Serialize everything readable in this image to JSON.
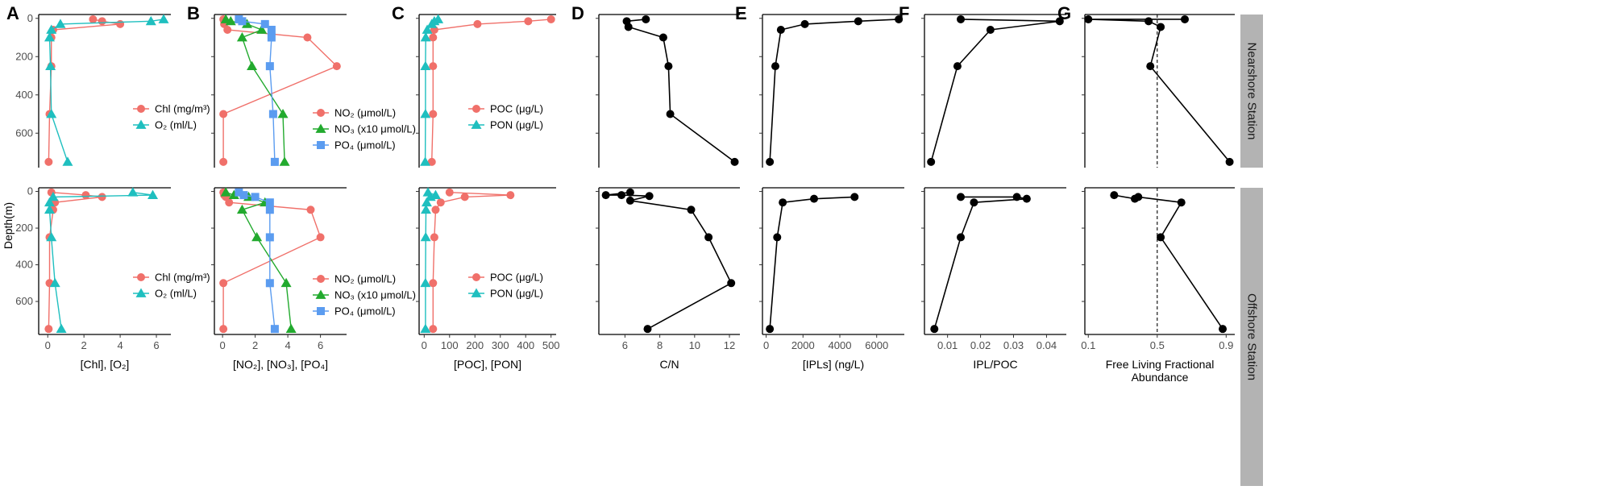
{
  "figure": {
    "y_axis_title": "Depth(m)",
    "strips": [
      "Nearshore Station",
      "Offshore Station"
    ],
    "colors": {
      "red": "#f0706a",
      "teal": "#1fbfbf",
      "green": "#22aa2e",
      "blue": "#5b9cf0",
      "black": "#000000"
    }
  },
  "chart_data": [
    {
      "panel": "A",
      "type": "scatter-line",
      "xlabel": "[Chl], [O₂]",
      "xlim": [
        -0.5,
        6.8
      ],
      "xticks": [
        0,
        2,
        4,
        6
      ],
      "tick_labels": [
        "0",
        "2",
        "4",
        "6"
      ],
      "ylim": [
        780,
        -20
      ],
      "yticks": [
        0,
        200,
        400,
        600
      ],
      "ytick_labels": [
        "0",
        "200",
        "400",
        "600"
      ],
      "legend": [
        {
          "label": "Chl (mg/m³)",
          "color": "#f0706a",
          "marker": "circle"
        },
        {
          "label": "O₂ (ml/L)",
          "color": "#1fbfbf",
          "marker": "triangle"
        }
      ],
      "series": [
        {
          "name": "Nearshore Chl",
          "row": 0,
          "color": "#f0706a",
          "marker": "circle",
          "x": [
            2.5,
            3.0,
            4.0,
            0.3,
            0.2,
            0.2,
            0.1,
            0.05
          ],
          "y": [
            5,
            15,
            30,
            60,
            100,
            250,
            500,
            750
          ]
        },
        {
          "name": "Nearshore O2",
          "row": 0,
          "color": "#1fbfbf",
          "marker": "triangle",
          "x": [
            6.4,
            5.7,
            0.7,
            0.2,
            0.1,
            0.15,
            0.2,
            1.1
          ],
          "y": [
            5,
            15,
            30,
            60,
            100,
            250,
            500,
            750
          ]
        },
        {
          "name": "Offshore Chl",
          "row": 1,
          "color": "#f0706a",
          "marker": "circle",
          "x": [
            0.2,
            2.1,
            3.0,
            0.4,
            0.3,
            0.1,
            0.1,
            0.05
          ],
          "y": [
            5,
            20,
            30,
            60,
            100,
            250,
            500,
            750
          ]
        },
        {
          "name": "Offshore O2",
          "row": 1,
          "color": "#1fbfbf",
          "marker": "triangle",
          "x": [
            4.7,
            5.8,
            0.3,
            0.1,
            0.1,
            0.2,
            0.4,
            0.75
          ],
          "y": [
            5,
            20,
            30,
            60,
            100,
            250,
            500,
            750
          ]
        }
      ]
    },
    {
      "panel": "B",
      "type": "scatter-line",
      "xlabel": "[NO₂], [NO₃], [PO₄]",
      "xlim": [
        -0.5,
        7.6
      ],
      "xticks": [
        0,
        2,
        4,
        6
      ],
      "tick_labels": [
        "0",
        "2",
        "4",
        "6"
      ],
      "ylim": [
        780,
        -20
      ],
      "yticks": [
        0,
        200,
        400,
        600
      ],
      "ytick_labels": [
        "0",
        "200",
        "400",
        "600"
      ],
      "legend": [
        {
          "label": "NO₂ (μmol/L)",
          "color": "#f0706a",
          "marker": "circle"
        },
        {
          "label": "NO₃ (x10 μmol/L)",
          "color": "#22aa2e",
          "marker": "triangle"
        },
        {
          "label": "PO₄ (μmol/L)",
          "color": "#5b9cf0",
          "marker": "square"
        }
      ],
      "series": [
        {
          "name": "Nearshore NO2",
          "row": 0,
          "color": "#f0706a",
          "marker": "circle",
          "x": [
            0.05,
            0.1,
            0.1,
            0.3,
            5.2,
            7.0,
            0.05,
            0.05
          ],
          "y": [
            5,
            15,
            30,
            60,
            100,
            250,
            500,
            750
          ]
        },
        {
          "name": "Nearshore NO3",
          "row": 0,
          "color": "#22aa2e",
          "marker": "triangle",
          "x": [
            0.2,
            0.5,
            1.5,
            2.4,
            1.2,
            1.8,
            3.7,
            3.8
          ],
          "y": [
            5,
            15,
            30,
            60,
            100,
            250,
            500,
            750
          ]
        },
        {
          "name": "Nearshore PO4",
          "row": 0,
          "color": "#5b9cf0",
          "marker": "square",
          "x": [
            1.0,
            1.2,
            2.6,
            3.0,
            3.0,
            2.9,
            3.1,
            3.2
          ],
          "y": [
            5,
            15,
            30,
            60,
            100,
            250,
            500,
            750
          ]
        },
        {
          "name": "Offshore NO2",
          "row": 1,
          "color": "#f0706a",
          "marker": "circle",
          "x": [
            0.05,
            0.1,
            0.2,
            0.4,
            5.4,
            6.0,
            0.05,
            0.05
          ],
          "y": [
            5,
            20,
            30,
            60,
            100,
            250,
            500,
            750
          ]
        },
        {
          "name": "Offshore NO3",
          "row": 1,
          "color": "#22aa2e",
          "marker": "triangle",
          "x": [
            0.2,
            0.7,
            1.6,
            2.6,
            1.2,
            2.1,
            3.9,
            4.2
          ],
          "y": [
            5,
            20,
            30,
            60,
            100,
            250,
            500,
            750
          ]
        },
        {
          "name": "Offshore PO4",
          "row": 1,
          "color": "#5b9cf0",
          "marker": "square",
          "x": [
            1.0,
            1.3,
            2.0,
            2.9,
            2.9,
            2.9,
            2.9,
            3.2
          ],
          "y": [
            5,
            20,
            30,
            60,
            100,
            250,
            500,
            750
          ]
        }
      ]
    },
    {
      "panel": "C",
      "type": "scatter-line",
      "xlabel": "[POC], [PON]",
      "xlim": [
        -20,
        520
      ],
      "xticks": [
        0,
        100,
        200,
        300,
        400,
        500
      ],
      "tick_labels": [
        "0",
        "100",
        "200",
        "300",
        "400",
        "500"
      ],
      "ylim": [
        780,
        -20
      ],
      "yticks": [
        0,
        200,
        400,
        600
      ],
      "ytick_labels": [
        "0",
        "200",
        "400",
        "600"
      ],
      "legend": [
        {
          "label": "POC (μg/L)",
          "color": "#f0706a",
          "marker": "circle"
        },
        {
          "label": "PON (μg/L)",
          "color": "#1fbfbf",
          "marker": "triangle"
        }
      ],
      "series": [
        {
          "name": "Nearshore POC",
          "row": 0,
          "color": "#f0706a",
          "marker": "circle",
          "x": [
            500,
            410,
            210,
            40,
            35,
            35,
            35,
            30
          ],
          "y": [
            5,
            15,
            30,
            60,
            100,
            250,
            500,
            750
          ]
        },
        {
          "name": "Nearshore PON",
          "row": 0,
          "color": "#1fbfbf",
          "marker": "triangle",
          "x": [
            55,
            40,
            30,
            12,
            6,
            5,
            5,
            4
          ],
          "y": [
            5,
            15,
            30,
            60,
            100,
            250,
            500,
            750
          ]
        },
        {
          "name": "Offshore POC",
          "row": 1,
          "color": "#f0706a",
          "marker": "circle",
          "x": [
            100,
            340,
            160,
            65,
            45,
            40,
            35,
            35
          ],
          "y": [
            5,
            20,
            30,
            60,
            100,
            250,
            500,
            750
          ]
        },
        {
          "name": "Offshore PON",
          "row": 1,
          "color": "#1fbfbf",
          "marker": "triangle",
          "x": [
            15,
            45,
            25,
            10,
            7,
            6,
            5,
            5
          ],
          "y": [
            5,
            20,
            30,
            60,
            100,
            250,
            500,
            750
          ]
        }
      ]
    },
    {
      "panel": "D",
      "type": "scatter-line",
      "xlabel": "C/N",
      "xlim": [
        4.5,
        12.6
      ],
      "xticks": [
        6,
        8,
        10,
        12
      ],
      "tick_labels": [
        "6",
        "8",
        "10",
        "12"
      ],
      "ylim": [
        780,
        -20
      ],
      "yticks": [
        0,
        200,
        400,
        600
      ],
      "ytick_labels": [
        "0",
        "200",
        "400",
        "600"
      ],
      "legend": [],
      "series": [
        {
          "name": "Nearshore C/N",
          "row": 0,
          "color": "#000000",
          "marker": "circle",
          "x": [
            7.2,
            6.1,
            6.2,
            8.2,
            8.5,
            8.6,
            12.3
          ],
          "y": [
            5,
            15,
            45,
            100,
            250,
            500,
            750
          ]
        },
        {
          "name": "Offshore C/N",
          "row": 1,
          "color": "#000000",
          "marker": "circle",
          "x": [
            6.3,
            4.9,
            5.8,
            7.4,
            6.3,
            9.8,
            10.8,
            12.1,
            7.3
          ],
          "y": [
            5,
            20,
            20,
            25,
            50,
            100,
            250,
            500,
            750
          ]
        }
      ]
    },
    {
      "panel": "E",
      "type": "scatter-line",
      "xlabel": "[IPLs] (ng/L)",
      "xlim": [
        -200,
        7500
      ],
      "xticks": [
        0,
        2000,
        4000,
        6000
      ],
      "tick_labels": [
        "0",
        "2000",
        "4000",
        "6000"
      ],
      "ylim": [
        780,
        -20
      ],
      "yticks": [
        0,
        200,
        400,
        600
      ],
      "ytick_labels": [
        "0",
        "200",
        "400",
        "600"
      ],
      "legend": [],
      "series": [
        {
          "name": "Nearshore IPLs",
          "row": 0,
          "color": "#000000",
          "marker": "circle",
          "x": [
            7200,
            5000,
            2100,
            800,
            500,
            200
          ],
          "y": [
            5,
            15,
            30,
            60,
            250,
            750
          ]
        },
        {
          "name": "Offshore IPLs",
          "row": 1,
          "color": "#000000",
          "marker": "circle",
          "x": [
            4800,
            2600,
            900,
            600,
            200
          ],
          "y": [
            30,
            40,
            60,
            250,
            750
          ]
        }
      ]
    },
    {
      "panel": "F",
      "type": "scatter-line",
      "xlabel": "IPL/POC",
      "xlim": [
        0.003,
        0.046
      ],
      "xticks": [
        0.01,
        0.02,
        0.03,
        0.04
      ],
      "tick_labels": [
        "0.01",
        "0.02",
        "0.03",
        "0.04"
      ],
      "ylim": [
        780,
        -20
      ],
      "yticks": [
        0,
        200,
        400,
        600
      ],
      "ytick_labels": [
        "0",
        "200",
        "400",
        "600"
      ],
      "legend": [],
      "series": [
        {
          "name": "Nearshore IPL/POC",
          "row": 0,
          "color": "#000000",
          "marker": "circle",
          "x": [
            0.014,
            0.044,
            0.023,
            0.013,
            0.005
          ],
          "y": [
            5,
            15,
            60,
            250,
            750
          ]
        },
        {
          "name": "Offshore IPL/POC",
          "row": 1,
          "color": "#000000",
          "marker": "circle",
          "x": [
            0.014,
            0.031,
            0.034,
            0.018,
            0.014,
            0.006
          ],
          "y": [
            30,
            30,
            40,
            60,
            250,
            750
          ]
        }
      ]
    },
    {
      "panel": "G",
      "type": "scatter-line",
      "xlabel": "Free Living Fractional Abundance",
      "xlim": [
        0.08,
        0.95
      ],
      "xticks": [
        0.1,
        0.5,
        0.9
      ],
      "tick_labels": [
        "0.1",
        "0.5",
        "0.9"
      ],
      "ylim": [
        780,
        -20
      ],
      "yticks": [
        0,
        200,
        400,
        600
      ],
      "ytick_labels": [
        "0",
        "200",
        "400",
        "600"
      ],
      "reference_line_x": 0.5,
      "legend": [],
      "series": [
        {
          "name": "Nearshore free living",
          "row": 0,
          "color": "#000000",
          "marker": "circle",
          "x": [
            0.66,
            0.1,
            0.45,
            0.52,
            0.46,
            0.92
          ],
          "y": [
            5,
            5,
            15,
            45,
            250,
            750
          ]
        },
        {
          "name": "Offshore free living",
          "row": 1,
          "color": "#000000",
          "marker": "circle",
          "x": [
            0.25,
            0.37,
            0.39,
            0.64,
            0.52,
            0.88
          ],
          "y": [
            20,
            40,
            30,
            60,
            250,
            750
          ]
        }
      ]
    }
  ]
}
